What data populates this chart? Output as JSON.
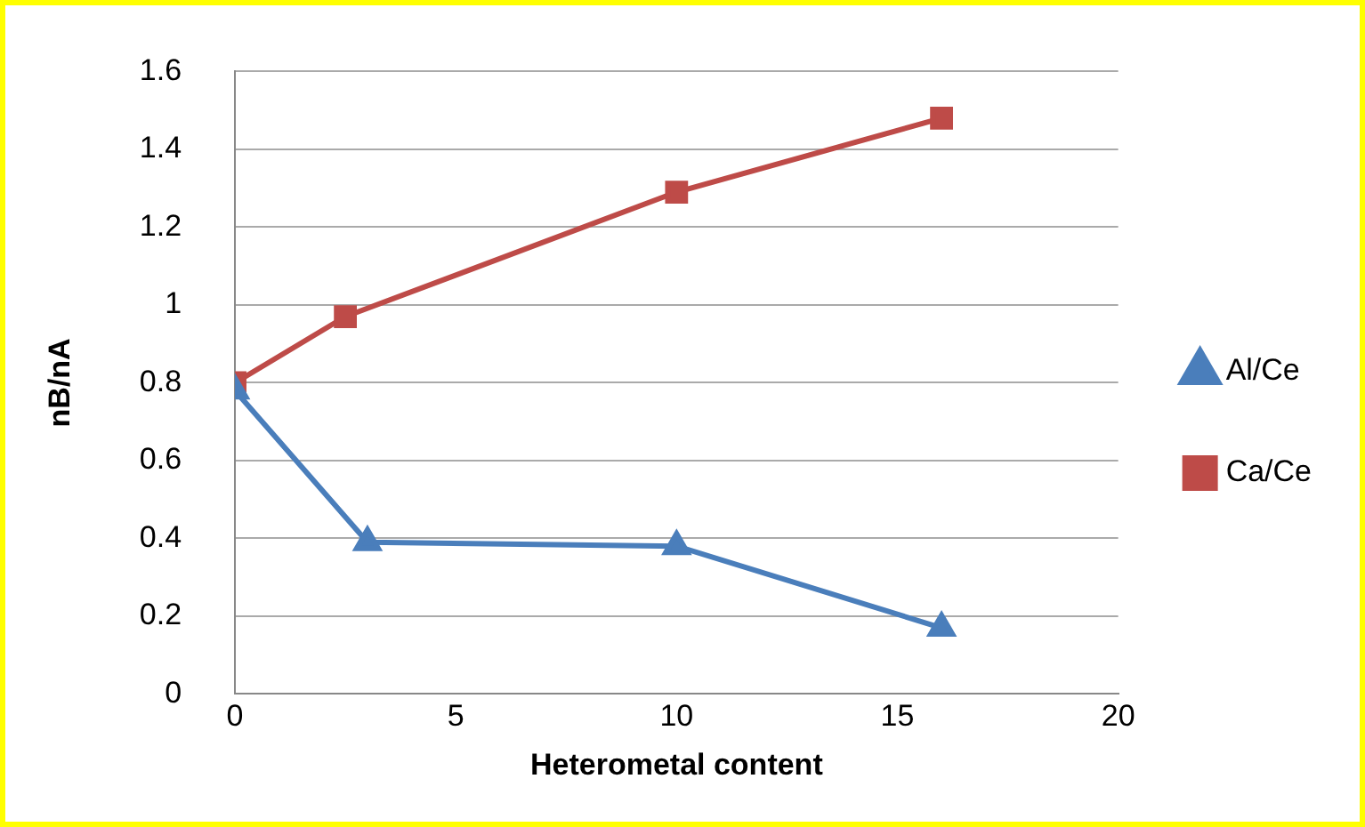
{
  "chart_data": {
    "type": "line",
    "xlabel": "Heterometal content",
    "ylabel": "nB/nA",
    "xlim": [
      0,
      20
    ],
    "xticks": [
      0,
      5,
      10,
      15,
      20
    ],
    "ylim": [
      0,
      1.6
    ],
    "yticks": [
      0,
      {
        "value": 0.2,
        "label": "0.2"
      },
      {
        "value": 0.4,
        "label": "0.4"
      },
      {
        "value": 0.6,
        "label": "0.6"
      },
      {
        "value": 0.8,
        "label": "0.8"
      },
      1,
      {
        "value": 1.2,
        "label": "1.2"
      },
      {
        "value": 1.4,
        "label": "1.4"
      },
      {
        "value": 1.6,
        "label": "1.6"
      }
    ],
    "grid": "y",
    "legend": "right",
    "line_style": "solid",
    "series": [
      {
        "name": "Al/Ce",
        "color": "#4a7ebb",
        "marker": "triangle",
        "x": [
          0,
          3,
          10,
          16
        ],
        "values": [
          0.78,
          0.39,
          0.38,
          0.17
        ]
      },
      {
        "name": "Ca/Ce",
        "color": "#be4b48",
        "marker": "square",
        "x": [
          0,
          2.5,
          10,
          16
        ],
        "values": [
          0.8,
          0.97,
          1.29,
          1.48
        ]
      }
    ]
  }
}
